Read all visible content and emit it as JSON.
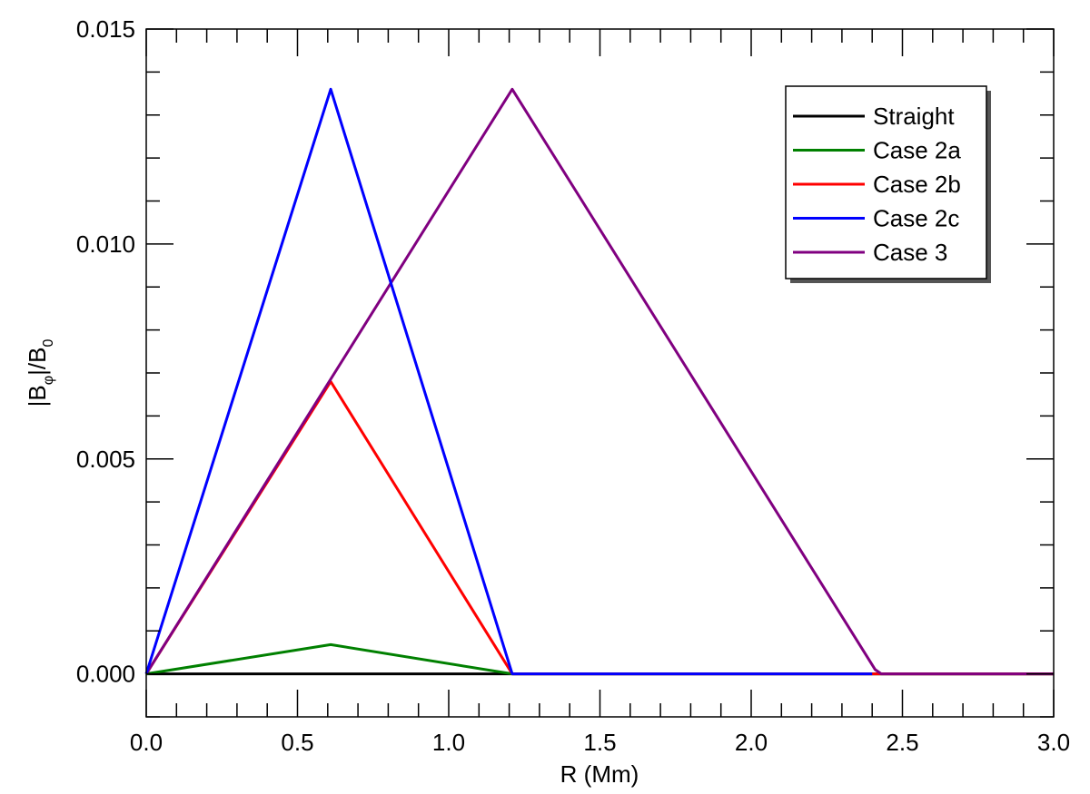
{
  "chart_data": {
    "type": "line",
    "xlabel": "R (Mm)",
    "ylabel_parts": {
      "open": "|B",
      "sub_phi": "φ",
      "mid": "|/B",
      "sub_zero": "0"
    },
    "xlim": [
      0.0,
      3.0
    ],
    "ylim": [
      -0.001,
      0.015
    ],
    "x_ticks": [
      {
        "value": 0.0,
        "label": "0.0"
      },
      {
        "value": 0.5,
        "label": "0.5"
      },
      {
        "value": 1.0,
        "label": "1.0"
      },
      {
        "value": 1.5,
        "label": "1.5"
      },
      {
        "value": 2.0,
        "label": "2.0"
      },
      {
        "value": 2.5,
        "label": "2.5"
      },
      {
        "value": 3.0,
        "label": "3.0"
      }
    ],
    "y_ticks": [
      {
        "value": 0.0,
        "label": "0.000"
      },
      {
        "value": 0.005,
        "label": "0.005"
      },
      {
        "value": 0.01,
        "label": "0.010"
      },
      {
        "value": 0.015,
        "label": "0.015"
      }
    ],
    "x_minor_step": 0.1,
    "y_minor_step": 0.001,
    "legend_position": "top-right",
    "grid": false,
    "series": [
      {
        "name": "Straight",
        "color": "#000000",
        "x": [
          0.0,
          3.0
        ],
        "y": [
          0.0,
          0.0
        ]
      },
      {
        "name": "Case 2a",
        "color": "#008000",
        "x": [
          0.0,
          0.61,
          1.21,
          3.0
        ],
        "y": [
          0.0,
          0.00068,
          0.0,
          0.0
        ]
      },
      {
        "name": "Case 2b",
        "color": "#ff0000",
        "x": [
          0.0,
          0.61,
          1.21,
          3.0
        ],
        "y": [
          0.0,
          0.0068,
          0.0,
          0.0
        ]
      },
      {
        "name": "Case 3",
        "color": "#800080",
        "x": [
          0.0,
          1.21,
          2.41,
          2.43,
          3.0
        ],
        "y": [
          0.0,
          0.0136,
          0.0001,
          0.0,
          0.0
        ]
      },
      {
        "name": "Case 2c",
        "color": "#0000ff",
        "x": [
          0.0,
          0.61,
          1.21,
          2.4
        ],
        "y": [
          0.0,
          0.0136,
          0.0,
          0.0
        ]
      }
    ],
    "legend_order": [
      "Straight",
      "Case 2a",
      "Case 2b",
      "Case 2c",
      "Case 3"
    ]
  }
}
